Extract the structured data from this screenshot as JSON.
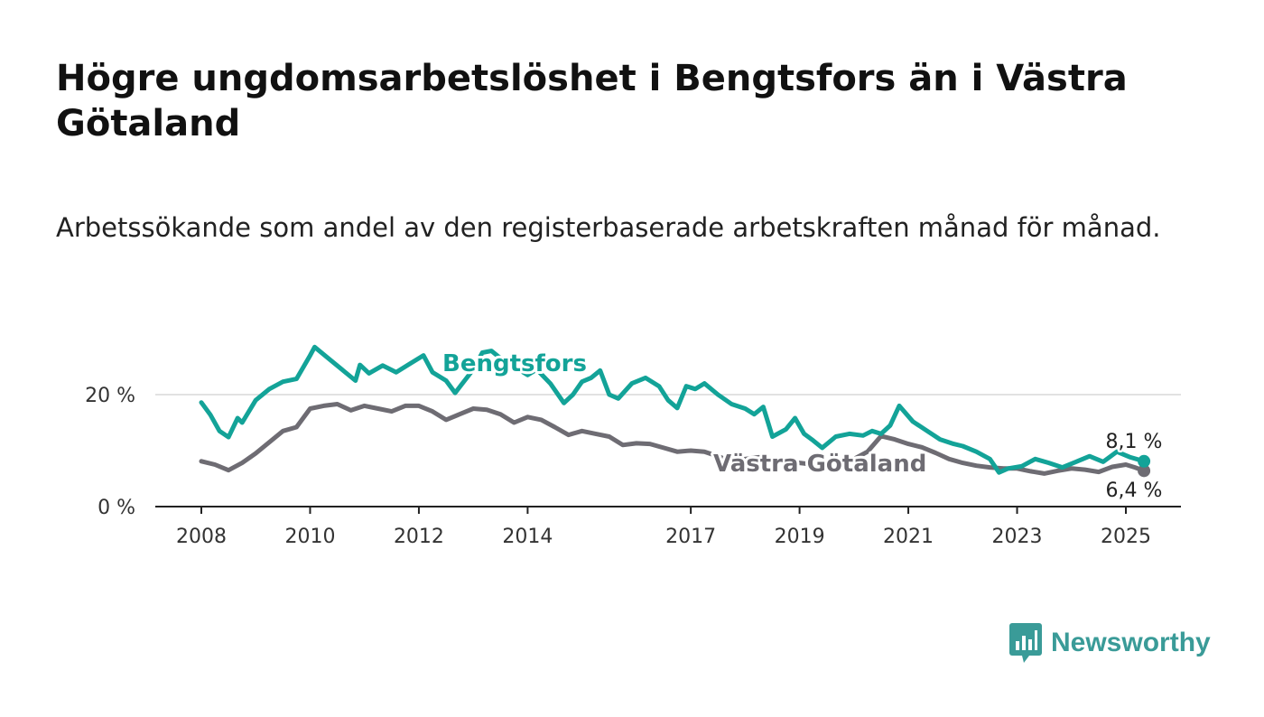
{
  "title": "Högre ungdomsarbetslöshet i Bengtsfors än i Västra Götaland",
  "subtitle": "Arbetssökande som andel av den registerbaserade arbetskraften månad för månad.",
  "brand": {
    "name": "Newsworthy",
    "color": "#3a9b98"
  },
  "chart_data": {
    "type": "line",
    "title": "Högre ungdomsarbetslöshet i Bengtsfors än i Västra Götaland",
    "subtitle": "Arbetssökande som andel av den registerbaserade arbetskraften månad för månad.",
    "xlabel": "",
    "ylabel": "",
    "x_ticks": [
      "2008",
      "2010",
      "2012",
      "2014",
      "2017",
      "2019",
      "2021",
      "2023",
      "2025"
    ],
    "y_ticks": [
      "0 %",
      "20 %"
    ],
    "ylim": [
      0,
      30
    ],
    "grid": "horizontal",
    "legend": "inline labels",
    "series": [
      {
        "name": "Bengtsfors",
        "color": "#13a398",
        "end_label": "8,1 %",
        "points": [
          [
            "2008-01",
            18.6
          ],
          [
            "2008-03",
            16.4
          ],
          [
            "2008-05",
            13.5
          ],
          [
            "2008-07",
            12.4
          ],
          [
            "2008-09",
            15.8
          ],
          [
            "2008-10",
            15.0
          ],
          [
            "2009-01",
            19.0
          ],
          [
            "2009-04",
            21.0
          ],
          [
            "2009-07",
            22.3
          ],
          [
            "2009-10",
            22.8
          ],
          [
            "2010-01",
            27.0
          ],
          [
            "2010-02",
            28.5
          ],
          [
            "2010-05",
            26.5
          ],
          [
            "2010-08",
            24.5
          ],
          [
            "2010-11",
            22.5
          ],
          [
            "2010-12",
            25.3
          ],
          [
            "2011-02",
            23.8
          ],
          [
            "2011-05",
            25.2
          ],
          [
            "2011-08",
            24.0
          ],
          [
            "2011-11",
            25.5
          ],
          [
            "2012-02",
            27.0
          ],
          [
            "2012-04",
            24.0
          ],
          [
            "2012-07",
            22.5
          ],
          [
            "2012-09",
            20.3
          ],
          [
            "2012-11",
            22.4
          ],
          [
            "2013-01",
            24.5
          ],
          [
            "2013-03",
            27.5
          ],
          [
            "2013-05",
            27.8
          ],
          [
            "2013-07",
            26.5
          ],
          [
            "2013-10",
            25.0
          ],
          [
            "2014-01",
            23.5
          ],
          [
            "2014-03",
            24.5
          ],
          [
            "2014-06",
            22.0
          ],
          [
            "2014-09",
            18.5
          ],
          [
            "2014-11",
            20.0
          ],
          [
            "2015-01",
            22.3
          ],
          [
            "2015-03",
            23.0
          ],
          [
            "2015-05",
            24.3
          ],
          [
            "2015-07",
            20.0
          ],
          [
            "2015-09",
            19.3
          ],
          [
            "2015-12",
            22.0
          ],
          [
            "2016-03",
            23.0
          ],
          [
            "2016-06",
            21.5
          ],
          [
            "2016-08",
            19.0
          ],
          [
            "2016-10",
            17.6
          ],
          [
            "2016-12",
            21.5
          ],
          [
            "2017-02",
            21.0
          ],
          [
            "2017-04",
            22.0
          ],
          [
            "2017-07",
            20.0
          ],
          [
            "2017-10",
            18.3
          ],
          [
            "2018-01",
            17.5
          ],
          [
            "2018-03",
            16.5
          ],
          [
            "2018-05",
            17.8
          ],
          [
            "2018-07",
            12.5
          ],
          [
            "2018-10",
            13.8
          ],
          [
            "2018-12",
            15.8
          ],
          [
            "2019-02",
            13.0
          ],
          [
            "2019-04",
            11.8
          ],
          [
            "2019-06",
            10.5
          ],
          [
            "2019-09",
            12.5
          ],
          [
            "2019-12",
            13.0
          ],
          [
            "2020-03",
            12.7
          ],
          [
            "2020-05",
            13.5
          ],
          [
            "2020-07",
            13.0
          ],
          [
            "2020-09",
            14.5
          ],
          [
            "2020-11",
            18.0
          ],
          [
            "2021-02",
            15.2
          ],
          [
            "2021-05",
            13.6
          ],
          [
            "2021-08",
            12.0
          ],
          [
            "2021-11",
            11.2
          ],
          [
            "2022-01",
            10.8
          ],
          [
            "2022-04",
            9.8
          ],
          [
            "2022-07",
            8.5
          ],
          [
            "2022-09",
            6.1
          ],
          [
            "2022-11",
            6.8
          ],
          [
            "2023-02",
            7.2
          ],
          [
            "2023-05",
            8.5
          ],
          [
            "2023-08",
            7.8
          ],
          [
            "2023-11",
            7.0
          ],
          [
            "2024-02",
            8.0
          ],
          [
            "2024-05",
            9.0
          ],
          [
            "2024-08",
            8.0
          ],
          [
            "2024-11",
            9.8
          ],
          [
            "2025-02",
            8.8
          ],
          [
            "2025-05",
            8.1
          ]
        ]
      },
      {
        "name": "Västra Götaland",
        "color": "#6e6c73",
        "end_label": "6,4 %",
        "points": [
          [
            "2008-01",
            8.1
          ],
          [
            "2008-04",
            7.5
          ],
          [
            "2008-07",
            6.5
          ],
          [
            "2008-10",
            7.8
          ],
          [
            "2009-01",
            9.5
          ],
          [
            "2009-04",
            11.5
          ],
          [
            "2009-07",
            13.5
          ],
          [
            "2009-10",
            14.2
          ],
          [
            "2010-01",
            17.5
          ],
          [
            "2010-04",
            18.0
          ],
          [
            "2010-07",
            18.3
          ],
          [
            "2010-10",
            17.2
          ],
          [
            "2011-01",
            18.0
          ],
          [
            "2011-04",
            17.5
          ],
          [
            "2011-07",
            17.0
          ],
          [
            "2011-10",
            18.0
          ],
          [
            "2012-01",
            18.0
          ],
          [
            "2012-04",
            17.0
          ],
          [
            "2012-07",
            15.5
          ],
          [
            "2012-10",
            16.5
          ],
          [
            "2013-01",
            17.5
          ],
          [
            "2013-04",
            17.3
          ],
          [
            "2013-07",
            16.5
          ],
          [
            "2013-10",
            15.0
          ],
          [
            "2014-01",
            16.0
          ],
          [
            "2014-04",
            15.5
          ],
          [
            "2014-07",
            14.2
          ],
          [
            "2014-10",
            12.8
          ],
          [
            "2015-01",
            13.5
          ],
          [
            "2015-04",
            13.0
          ],
          [
            "2015-07",
            12.5
          ],
          [
            "2015-10",
            11.0
          ],
          [
            "2016-01",
            11.3
          ],
          [
            "2016-04",
            11.2
          ],
          [
            "2016-07",
            10.5
          ],
          [
            "2016-10",
            9.8
          ],
          [
            "2017-01",
            10.0
          ],
          [
            "2017-04",
            9.8
          ],
          [
            "2017-07",
            9.0
          ],
          [
            "2017-10",
            8.0
          ],
          [
            "2018-01",
            8.5
          ],
          [
            "2018-04",
            8.8
          ],
          [
            "2018-07",
            8.5
          ],
          [
            "2018-10",
            8.0
          ],
          [
            "2019-01",
            7.8
          ],
          [
            "2019-04",
            7.5
          ],
          [
            "2019-07",
            7.8
          ],
          [
            "2019-10",
            8.3
          ],
          [
            "2020-01",
            8.5
          ],
          [
            "2020-04",
            9.8
          ],
          [
            "2020-07",
            12.6
          ],
          [
            "2020-10",
            12.0
          ],
          [
            "2021-01",
            11.2
          ],
          [
            "2021-04",
            10.6
          ],
          [
            "2021-07",
            9.6
          ],
          [
            "2021-10",
            8.5
          ],
          [
            "2022-01",
            7.8
          ],
          [
            "2022-04",
            7.3
          ],
          [
            "2022-07",
            7.0
          ],
          [
            "2022-10",
            6.8
          ],
          [
            "2023-01",
            6.8
          ],
          [
            "2023-04",
            6.3
          ],
          [
            "2023-07",
            5.9
          ],
          [
            "2023-10",
            6.4
          ],
          [
            "2024-01",
            6.8
          ],
          [
            "2024-04",
            6.6
          ],
          [
            "2024-07",
            6.2
          ],
          [
            "2024-10",
            7.1
          ],
          [
            "2025-01",
            7.5
          ],
          [
            "2025-03",
            7.0
          ],
          [
            "2025-05",
            6.4
          ]
        ]
      }
    ]
  }
}
